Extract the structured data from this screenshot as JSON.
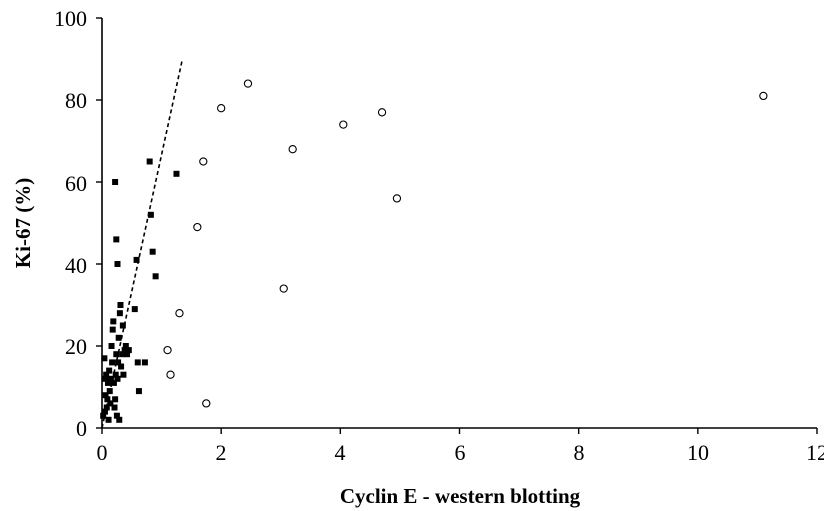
{
  "chart_data": {
    "type": "scatter",
    "title": "",
    "xlabel": "Cyclin E - western blotting",
    "ylabel": "Ki-67 (%)",
    "xlim": [
      0,
      12
    ],
    "ylim": [
      0,
      100
    ],
    "x_ticks": [
      "0",
      "2",
      "4",
      "6",
      "8",
      "10",
      "12"
    ],
    "y_ticks": [
      "0",
      "20",
      "40",
      "60",
      "80",
      "100"
    ],
    "x_tick_values": [
      0,
      2,
      4,
      6,
      8,
      10,
      12
    ],
    "y_tick_values": [
      0,
      20,
      40,
      60,
      80,
      100
    ],
    "grid": false,
    "legend": "none",
    "series": [
      {
        "marker": "filled-square",
        "color": "#000000",
        "points": [
          [
            0.02,
            3
          ],
          [
            0.04,
            17
          ],
          [
            0.05,
            12
          ],
          [
            0.06,
            8
          ],
          [
            0.07,
            13
          ],
          [
            0.08,
            5
          ],
          [
            0.09,
            7
          ],
          [
            0.1,
            11
          ],
          [
            0.11,
            2
          ],
          [
            0.12,
            14
          ],
          [
            0.13,
            9
          ],
          [
            0.14,
            6
          ],
          [
            0.15,
            12
          ],
          [
            0.16,
            20
          ],
          [
            0.17,
            16
          ],
          [
            0.18,
            24
          ],
          [
            0.19,
            26
          ],
          [
            0.2,
            11
          ],
          [
            0.21,
            5
          ],
          [
            0.22,
            7
          ],
          [
            0.23,
            13
          ],
          [
            0.24,
            18
          ],
          [
            0.25,
            3
          ],
          [
            0.26,
            12
          ],
          [
            0.27,
            16
          ],
          [
            0.28,
            22
          ],
          [
            0.29,
            2
          ],
          [
            0.3,
            28
          ],
          [
            0.31,
            30
          ],
          [
            0.32,
            15
          ],
          [
            0.34,
            18
          ],
          [
            0.36,
            13
          ],
          [
            0.38,
            19
          ],
          [
            0.4,
            20
          ],
          [
            0.42,
            18
          ],
          [
            0.55,
            29
          ],
          [
            0.58,
            41
          ],
          [
            0.6,
            16
          ],
          [
            0.62,
            9
          ],
          [
            0.72,
            16
          ],
          [
            0.8,
            65
          ],
          [
            0.82,
            52
          ],
          [
            0.85,
            43
          ],
          [
            0.9,
            37
          ],
          [
            1.25,
            62
          ],
          [
            0.22,
            60
          ],
          [
            0.24,
            46
          ],
          [
            0.26,
            40
          ],
          [
            0.35,
            25
          ],
          [
            0.45,
            19
          ],
          [
            0.05,
            4
          ]
        ]
      },
      {
        "marker": "open-circle",
        "color": "#000000",
        "points": [
          [
            1.1,
            19
          ],
          [
            1.15,
            13
          ],
          [
            1.3,
            28
          ],
          [
            1.6,
            49
          ],
          [
            1.7,
            65
          ],
          [
            1.75,
            6
          ],
          [
            2.0,
            78
          ],
          [
            2.45,
            84
          ],
          [
            3.05,
            34
          ],
          [
            3.2,
            68
          ],
          [
            4.05,
            74
          ],
          [
            4.7,
            77
          ],
          [
            4.95,
            56
          ],
          [
            11.1,
            81
          ]
        ]
      }
    ],
    "trend_line": {
      "style": "dashed",
      "x": [
        0.0,
        1.35
      ],
      "y": [
        0,
        90
      ]
    }
  }
}
